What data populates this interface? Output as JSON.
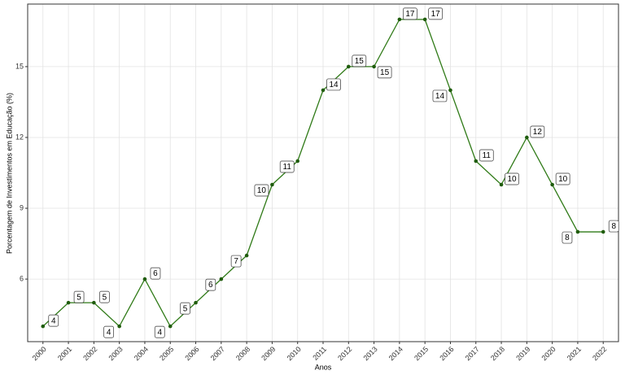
{
  "chart_data": {
    "type": "line",
    "x_label": "Anos",
    "y_label": "Porcentagem de Investimentos em Educação (%)",
    "categories": [
      "2000",
      "2001",
      "2002",
      "2003",
      "2004",
      "2005",
      "2006",
      "2007",
      "2008",
      "2009",
      "2010",
      "2011",
      "2012",
      "2013",
      "2014",
      "2015",
      "2016",
      "2017",
      "2018",
      "2019",
      "2020",
      "2021",
      "2022"
    ],
    "values": [
      4,
      5,
      5,
      4,
      6,
      4,
      5,
      6,
      7,
      10,
      11,
      14,
      15,
      15,
      17,
      17,
      14,
      11,
      10,
      12,
      10,
      8,
      8
    ],
    "color": "#2f7a17",
    "point_color": "#1f5c0c",
    "ylim": [
      3.35,
      17.65
    ],
    "yticks": [
      6,
      9,
      12,
      15
    ],
    "grid": true
  }
}
